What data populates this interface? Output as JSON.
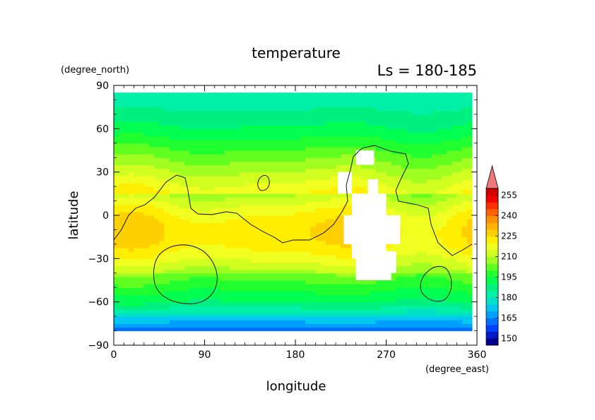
{
  "chart_data": {
    "type": "heatmap",
    "title": "temperature",
    "subtitle": "Ls = 180-185",
    "xlabel": "longitude",
    "ylabel": "latitude",
    "x_unit": "(degree_east)",
    "y_unit": "(degree_north)",
    "xlim": [
      0,
      360
    ],
    "ylim": [
      -90,
      90
    ],
    "x_ticks": [
      {
        "value": 0,
        "label": "0"
      },
      {
        "value": 90,
        "label": "90"
      },
      {
        "value": 180,
        "label": "180"
      },
      {
        "value": 270,
        "label": "270"
      },
      {
        "value": 360,
        "label": "360"
      }
    ],
    "y_ticks": [
      {
        "value": 90,
        "label": "90"
      },
      {
        "value": 60,
        "label": "60"
      },
      {
        "value": 30,
        "label": "30"
      },
      {
        "value": 0,
        "label": "0"
      },
      {
        "value": -30,
        "label": "−30"
      },
      {
        "value": -60,
        "label": "−60"
      },
      {
        "value": -90,
        "label": "−90"
      }
    ],
    "colorbar": {
      "min": 145,
      "max": 260,
      "step": 5,
      "labels": [
        "150",
        "165",
        "180",
        "195",
        "210",
        "225",
        "240",
        "255"
      ],
      "label_values": [
        150,
        165,
        180,
        195,
        210,
        225,
        240,
        255
      ],
      "extend": "max",
      "colors": [
        "#000090",
        "#0018c8",
        "#0040ff",
        "#0070ff",
        "#00a0ff",
        "#00c8f0",
        "#00e0c8",
        "#00f0a8",
        "#00f080",
        "#00ff50",
        "#20ff30",
        "#60ff20",
        "#a0ff20",
        "#d0ff20",
        "#f0ff20",
        "#ffee00",
        "#ffd000",
        "#ffb000",
        "#ff9000",
        "#ff6000",
        "#ff3000",
        "#f00000",
        "#d00000"
      ],
      "extend_color": "#f07878"
    },
    "missing_regions": [
      {
        "lon": [
          240,
          258
        ],
        "lat": [
          35,
          45
        ]
      },
      {
        "lon": [
          222,
          236
        ],
        "lat": [
          20,
          30
        ]
      },
      {
        "lon": [
          222,
          236
        ],
        "lat": [
          15,
          20
        ]
      },
      {
        "lon": [
          252,
          262
        ],
        "lat": [
          15,
          25
        ]
      },
      {
        "lon": [
          236,
          270
        ],
        "lat": [
          -30,
          15
        ]
      },
      {
        "lon": [
          228,
          284
        ],
        "lat": [
          -20,
          0
        ]
      },
      {
        "lon": [
          240,
          275
        ],
        "lat": [
          -45,
          -30
        ]
      },
      {
        "lon": [
          270,
          280
        ],
        "lat": [
          -40,
          -25
        ]
      },
      {
        "lon": [
          136,
          220
        ],
        "lat": [
          -90,
          -85
        ]
      }
    ]
  }
}
